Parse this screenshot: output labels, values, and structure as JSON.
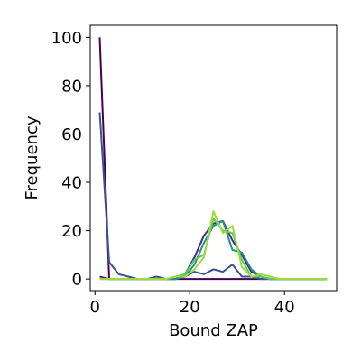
{
  "chart_data": {
    "type": "line",
    "title": "",
    "xlabel": "Bound ZAP",
    "ylabel": "Frequency",
    "xlim": [
      -1,
      51
    ],
    "ylim": [
      -4.8,
      105
    ],
    "xticks": [
      0,
      20,
      40
    ],
    "yticks": [
      0,
      20,
      40,
      60,
      80,
      100
    ],
    "grid": false,
    "legend": "none",
    "series": [
      {
        "color": "#440154",
        "x": [
          1,
          3,
          5,
          7,
          9,
          11,
          13,
          15,
          17,
          19,
          21,
          23,
          25,
          27,
          29,
          31,
          33,
          35,
          37,
          39,
          41,
          43,
          45,
          47,
          49
        ],
        "y": [
          100,
          0,
          0,
          0,
          0,
          0,
          0,
          0,
          0,
          0,
          0,
          0,
          0,
          0,
          0,
          0,
          0,
          0,
          0,
          0,
          0,
          0,
          0,
          0,
          0
        ]
      },
      {
        "color": "#3b528b",
        "x": [
          1,
          3,
          5,
          7,
          9,
          11,
          13,
          15,
          17,
          19,
          21,
          23,
          25,
          27,
          29,
          31,
          33,
          35,
          37,
          39,
          41,
          43,
          45,
          47,
          49
        ],
        "y": [
          69,
          7,
          2,
          1,
          0,
          0,
          1,
          0,
          0,
          1,
          3,
          2,
          4,
          3,
          6,
          1,
          1,
          0,
          0,
          0,
          0,
          0,
          0,
          0,
          0
        ]
      },
      {
        "color": "#472d7b",
        "x": [
          1,
          3,
          5,
          7,
          9,
          11,
          13,
          15,
          17,
          19,
          21,
          23,
          25,
          27,
          29,
          31,
          33,
          35,
          37,
          39,
          41,
          43,
          45,
          47,
          49
        ],
        "y": [
          1,
          0,
          0,
          0,
          0,
          0,
          0,
          0,
          0,
          2,
          9,
          18,
          23,
          24,
          16,
          10,
          3,
          1,
          0,
          0,
          0,
          0,
          0,
          0,
          0
        ]
      },
      {
        "color": "#21908c",
        "x": [
          1,
          3,
          5,
          7,
          9,
          11,
          13,
          15,
          17,
          19,
          21,
          23,
          25,
          27,
          29,
          31,
          33,
          35,
          37,
          39,
          41,
          43,
          45,
          47,
          49
        ],
        "y": [
          0,
          0,
          0,
          0,
          0,
          0,
          0,
          0,
          0,
          1,
          6,
          15,
          22,
          24,
          12,
          11,
          4,
          1,
          0,
          0,
          0,
          0,
          0,
          0,
          0
        ]
      },
      {
        "color": "#5ec962",
        "x": [
          1,
          3,
          5,
          7,
          9,
          11,
          13,
          15,
          17,
          19,
          21,
          23,
          25,
          27,
          29,
          31,
          33,
          35,
          37,
          39,
          41,
          43,
          45,
          47,
          49
        ],
        "y": [
          0,
          0,
          0,
          0,
          0,
          0,
          0,
          0,
          1,
          2,
          8,
          10,
          25,
          20,
          19,
          8,
          1,
          1,
          0,
          0,
          0,
          0,
          0,
          0,
          0
        ]
      },
      {
        "color": "#a0da39",
        "x": [
          1,
          3,
          5,
          7,
          9,
          11,
          13,
          15,
          17,
          19,
          21,
          23,
          25,
          27,
          29,
          31,
          33,
          35,
          37,
          39,
          41,
          43,
          45,
          47,
          49
        ],
        "y": [
          0,
          0,
          0,
          0,
          0,
          0,
          0,
          0,
          1,
          1,
          4,
          9,
          28,
          19,
          22,
          5,
          1,
          2,
          1,
          0,
          0,
          0,
          0,
          0,
          0
        ]
      }
    ]
  }
}
